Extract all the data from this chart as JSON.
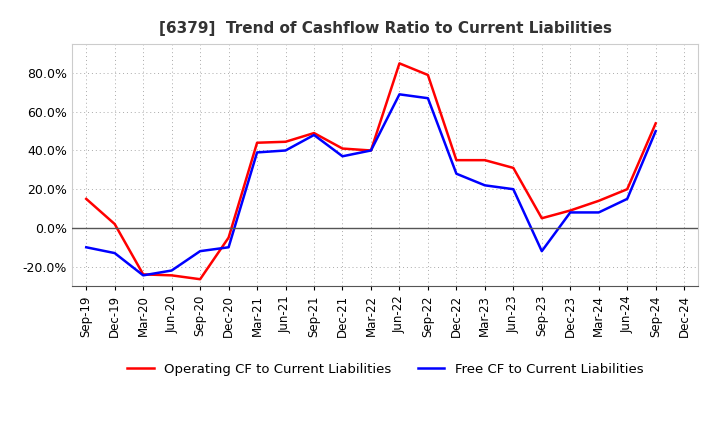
{
  "title": "[6379]  Trend of Cashflow Ratio to Current Liabilities",
  "x_labels": [
    "Sep-19",
    "Dec-19",
    "Mar-20",
    "Jun-20",
    "Sep-20",
    "Dec-20",
    "Mar-21",
    "Jun-21",
    "Sep-21",
    "Dec-21",
    "Mar-22",
    "Jun-22",
    "Sep-22",
    "Dec-22",
    "Mar-23",
    "Jun-23",
    "Sep-23",
    "Dec-23",
    "Mar-24",
    "Jun-24",
    "Sep-24",
    "Dec-24"
  ],
  "operating_cf": [
    15.0,
    2.0,
    -24.0,
    -24.5,
    -26.5,
    -5.0,
    44.0,
    44.5,
    49.0,
    41.0,
    40.0,
    85.0,
    79.0,
    35.0,
    35.0,
    31.0,
    5.0,
    9.0,
    14.0,
    20.0,
    54.0,
    null
  ],
  "free_cf": [
    -10.0,
    -13.0,
    -24.5,
    -22.0,
    -12.0,
    -10.0,
    39.0,
    40.0,
    48.0,
    37.0,
    40.0,
    69.0,
    67.0,
    28.0,
    22.0,
    20.0,
    -12.0,
    8.0,
    8.0,
    15.0,
    50.0,
    null
  ],
  "ylim": [
    -30,
    95
  ],
  "yticks": [
    -20,
    0,
    20,
    40,
    60,
    80
  ],
  "operating_color": "#FF0000",
  "free_color": "#0000FF",
  "background_color": "#FFFFFF",
  "plot_bg_color": "#FFFFFF",
  "grid_color": "#AAAAAA",
  "legend_op": "Operating CF to Current Liabilities",
  "legend_free": "Free CF to Current Liabilities"
}
